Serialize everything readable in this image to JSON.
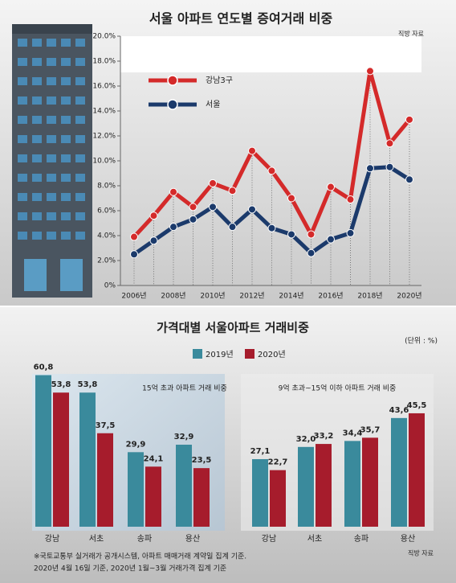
{
  "chart_data": [
    {
      "type": "line",
      "title": "서울 아파트 연도별 증여거래 비중",
      "source": "직방 자료",
      "categories": [
        "2006년",
        null,
        "2008년",
        null,
        "2010년",
        null,
        "2012년",
        null,
        "2014년",
        null,
        "2016년",
        null,
        "2018년",
        null,
        "2020년"
      ],
      "ylim": [
        0,
        20
      ],
      "yticks": [
        {
          "value": 0,
          "label": "0%"
        },
        {
          "value": 2,
          "label": "2.0%"
        },
        {
          "value": 4,
          "label": "4.0%"
        },
        {
          "value": 6,
          "label": "6.0%"
        },
        {
          "value": 8,
          "label": "8.0%"
        },
        {
          "value": 10,
          "label": "10.0%"
        },
        {
          "value": 12,
          "label": "12.0%"
        },
        {
          "value": 14,
          "label": "14.0%"
        },
        {
          "value": 16,
          "label": "16.0%"
        },
        {
          "value": 18,
          "label": "18.0%"
        },
        {
          "value": 20,
          "label": "20.0%"
        }
      ],
      "series": [
        {
          "name": "강남3구",
          "color": "#d42a2a",
          "values": [
            3.9,
            5.6,
            7.5,
            6.3,
            8.2,
            7.6,
            10.8,
            9.2,
            7.0,
            4.1,
            7.9,
            6.9,
            17.2,
            11.4,
            13.3
          ]
        },
        {
          "name": "서울",
          "color": "#1b3a6b",
          "values": [
            2.5,
            3.6,
            4.7,
            5.3,
            6.3,
            4.7,
            6.1,
            4.6,
            4.1,
            2.6,
            3.7,
            4.2,
            9.4,
            9.5,
            8.5
          ]
        }
      ]
    },
    {
      "type": "bar",
      "title": "가격대별 서울아파트 거래비중",
      "unit": "(단위 : %)",
      "source": "직방 자료",
      "note": [
        "※국토교통부 실거래가 공개시스템, 아파트 매매거래 계약일 집계 기준.",
        "2020년 4월 16일 기준, 2020년 1월~3월 거래가격 집계 기준"
      ],
      "legend": [
        {
          "name": "2019년",
          "color": "#3a8a9c"
        },
        {
          "name": "2020년",
          "color": "#a61c2c"
        }
      ],
      "panels": [
        {
          "subtitle": "15억 초과 아파트 거래 비중",
          "categories": [
            "강남",
            "서초",
            "송파",
            "용산"
          ],
          "series": [
            {
              "values": [
                60.8,
                53.8,
                29.9,
                32.9
              ],
              "value_labels": [
                "60,8",
                "53,8",
                "29,9",
                "32,9"
              ]
            },
            {
              "values": [
                53.8,
                37.5,
                24.1,
                23.5
              ],
              "value_labels": [
                "53,8",
                "37,5",
                "24,1",
                "23,5"
              ]
            }
          ]
        },
        {
          "subtitle": "9억 초과~15억 이하 아파트 거래 비중",
          "categories": [
            "강남",
            "서초",
            "송파",
            "용산"
          ],
          "series": [
            {
              "values": [
                27.1,
                32.0,
                34.4,
                43.6
              ],
              "value_labels": [
                "27,1",
                "32,0",
                "34,4",
                "43,6"
              ]
            },
            {
              "values": [
                22.7,
                33.2,
                35.7,
                45.5
              ],
              "value_labels": [
                "22,7",
                "33,2",
                "35,7",
                "45,5"
              ]
            }
          ]
        }
      ]
    }
  ]
}
